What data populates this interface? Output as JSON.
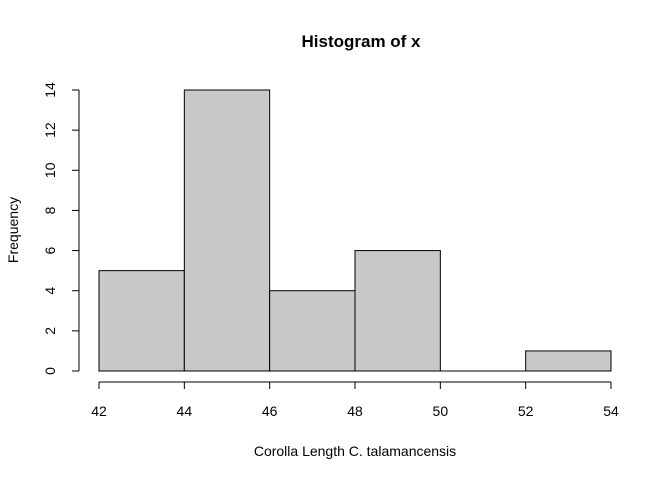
{
  "chart_data": {
    "type": "bar",
    "title": "Histogram of x",
    "xlabel": "Corolla Length C. talamancensis",
    "ylabel": "Frequency",
    "bins": [
      {
        "start": 42,
        "end": 44,
        "count": 5
      },
      {
        "start": 44,
        "end": 46,
        "count": 14
      },
      {
        "start": 46,
        "end": 48,
        "count": 4
      },
      {
        "start": 48,
        "end": 50,
        "count": 6
      },
      {
        "start": 50,
        "end": 52,
        "count": 0
      },
      {
        "start": 52,
        "end": 54,
        "count": 1
      }
    ],
    "xticks": [
      42,
      44,
      46,
      48,
      50,
      52,
      54
    ],
    "yticks": [
      0,
      2,
      4,
      6,
      8,
      10,
      12,
      14
    ],
    "xlim": [
      42,
      54
    ],
    "ylim": [
      0,
      14
    ],
    "grid": false,
    "colors": {
      "bar_fill": "#c8c8c8",
      "bar_stroke": "#000000"
    }
  }
}
